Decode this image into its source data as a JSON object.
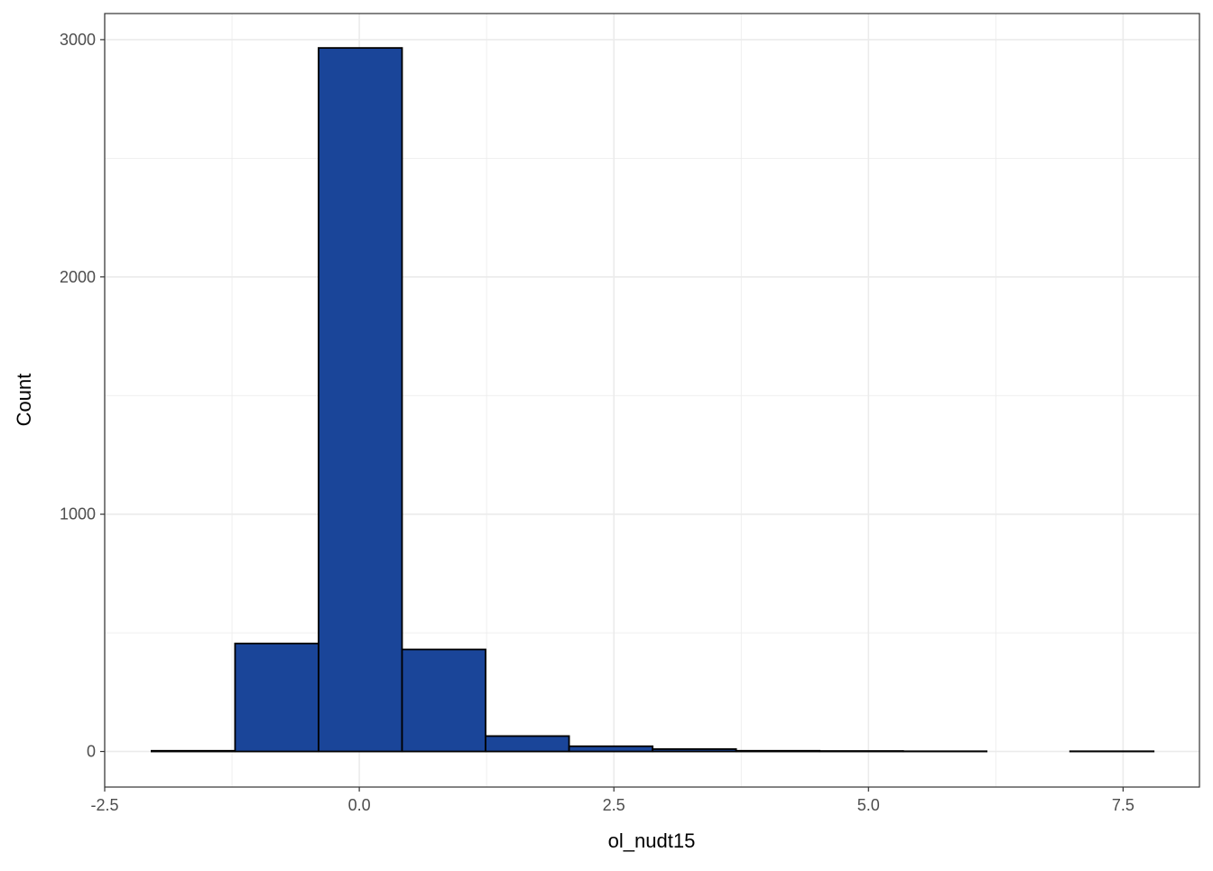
{
  "chart_data": {
    "type": "bar",
    "subtype": "histogram",
    "xlabel": "ol_nudt15",
    "ylabel": "Count",
    "xlim": [
      -2.5,
      8.25
    ],
    "ylim": [
      -150,
      3110
    ],
    "x_ticks": [
      -2.5,
      0.0,
      2.5,
      5.0,
      7.5
    ],
    "x_tick_labels": [
      "-2.5",
      "0.0",
      "2.5",
      "5.0",
      "7.5"
    ],
    "y_ticks": [
      0,
      1000,
      2000,
      3000
    ],
    "y_tick_labels": [
      "0",
      "1000",
      "2000",
      "3000"
    ],
    "grid": true,
    "bins": [
      {
        "x0": -2.04,
        "x1": -1.22,
        "count": 3
      },
      {
        "x0": -1.22,
        "x1": -0.4,
        "count": 455
      },
      {
        "x0": -0.4,
        "x1": 0.42,
        "count": 2965
      },
      {
        "x0": 0.42,
        "x1": 1.24,
        "count": 430
      },
      {
        "x0": 1.24,
        "x1": 2.06,
        "count": 65
      },
      {
        "x0": 2.06,
        "x1": 2.88,
        "count": 22
      },
      {
        "x0": 2.88,
        "x1": 3.7,
        "count": 10
      },
      {
        "x0": 3.7,
        "x1": 4.52,
        "count": 3
      },
      {
        "x0": 4.52,
        "x1": 5.34,
        "count": 2
      },
      {
        "x0": 5.34,
        "x1": 6.16,
        "count": 1
      },
      {
        "x0": 6.16,
        "x1": 6.98,
        "count": 0
      },
      {
        "x0": 6.98,
        "x1": 7.8,
        "count": 1
      }
    ],
    "colors": {
      "fill": "#1a4599",
      "stroke": "#000000",
      "grid": "#ebebeb",
      "panel_border": "#333333"
    }
  }
}
